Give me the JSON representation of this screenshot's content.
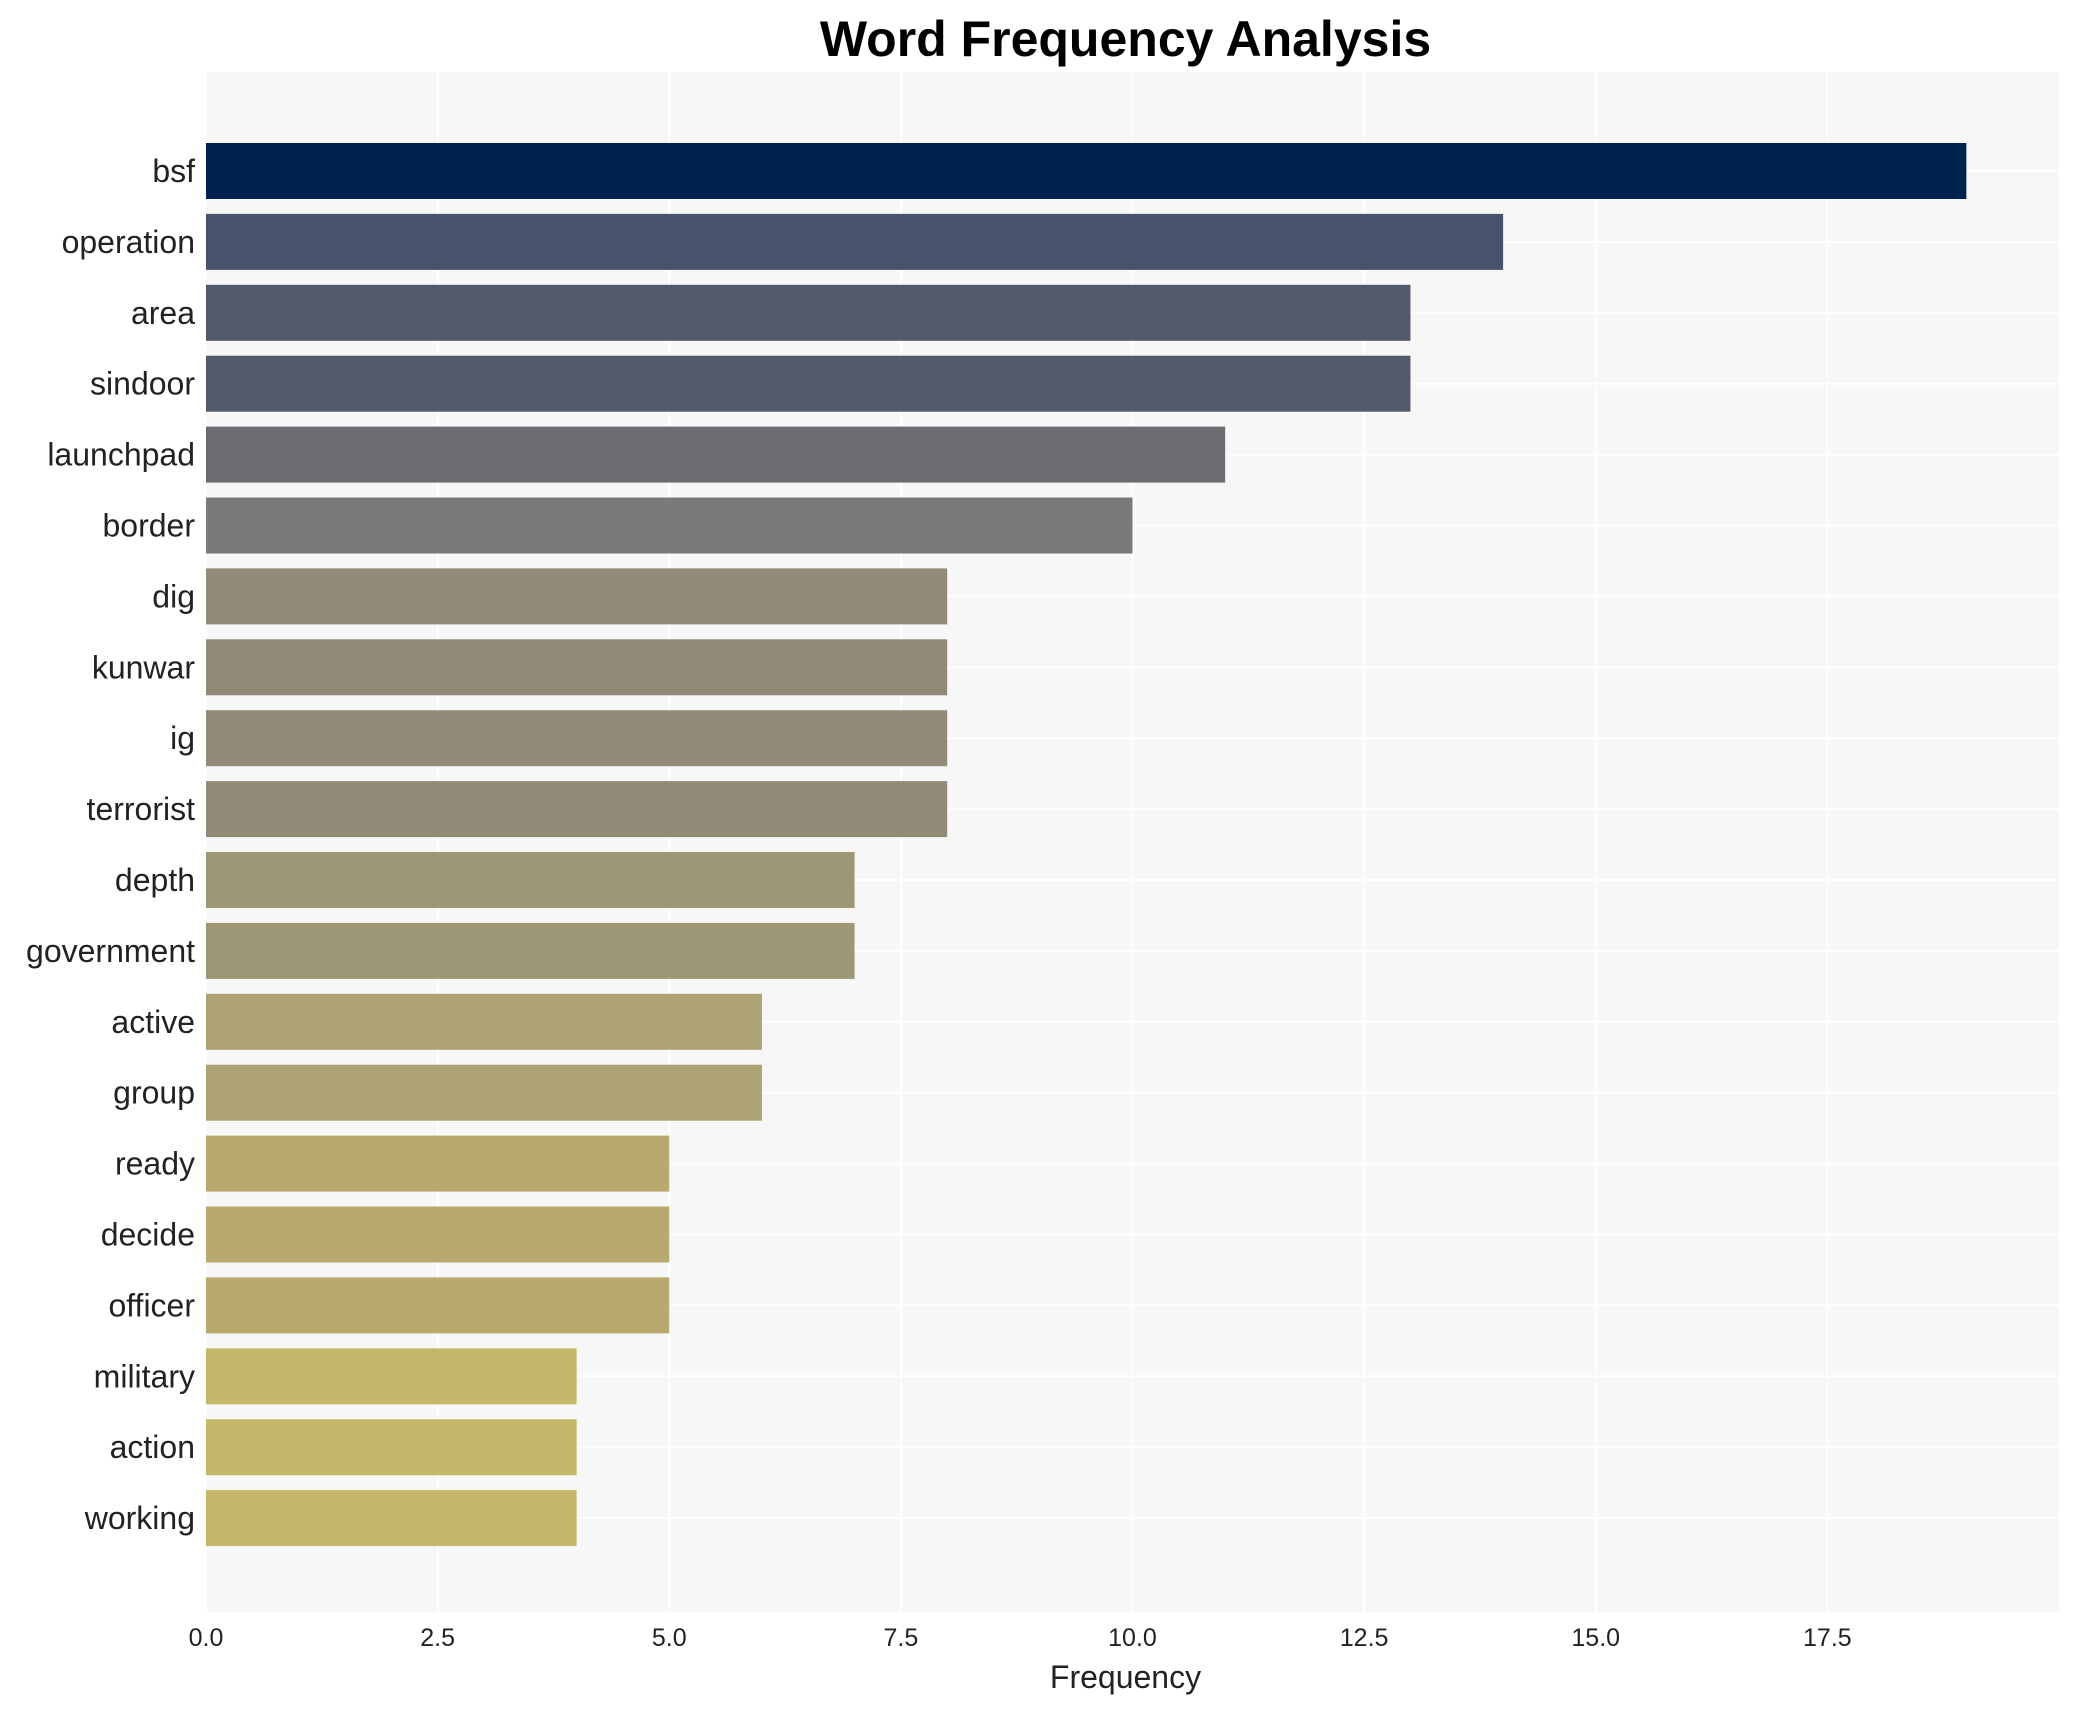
{
  "chart_data": {
    "type": "bar",
    "orientation": "horizontal",
    "title": "Word Frequency Analysis",
    "xlabel": "Frequency",
    "ylabel": "",
    "xlim": [
      0,
      20
    ],
    "xticks": [
      "0.0",
      "2.5",
      "5.0",
      "7.5",
      "10.0",
      "12.5",
      "15.0",
      "17.5"
    ],
    "grid": true,
    "categories": [
      "bsf",
      "operation",
      "area",
      "sindoor",
      "launchpad",
      "border",
      "dig",
      "kunwar",
      "ig",
      "terrorist",
      "depth",
      "government",
      "active",
      "group",
      "ready",
      "decide",
      "officer",
      "military",
      "action",
      "working"
    ],
    "values": [
      19,
      14,
      13,
      13,
      11,
      10,
      8,
      8,
      8,
      8,
      7,
      7,
      6,
      6,
      5,
      5,
      5,
      4,
      4,
      4
    ],
    "colors": [
      "#00224e",
      "#47526b",
      "#535a6b",
      "#535a6b",
      "#6b6c70",
      "#7a7a78",
      "#918a77",
      "#918a77",
      "#918a77",
      "#918a77",
      "#9e9776",
      "#9e9776",
      "#aca274",
      "#aca274",
      "#b8aa6f",
      "#b8aa6f",
      "#b8aa6f",
      "#c5b769",
      "#c5b769",
      "#c5b769"
    ],
    "plot_background": "#f7f7f7"
  }
}
